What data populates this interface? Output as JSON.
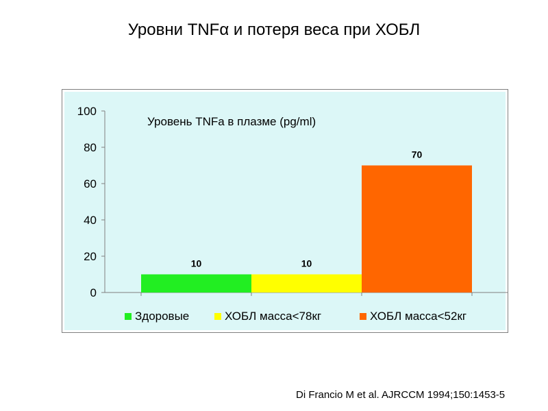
{
  "title": "Уровни TNFα  и потеря веса при ХОБЛ",
  "citation": "Di Francio M et al. AJRCCM 1994;150:1453-5",
  "colors": {
    "plot_background": "#dcf7f7",
    "bar_healthy": "#22ee22",
    "bar_mass78": "#ffff00",
    "bar_mass52": "#ff6600"
  },
  "chart_data": {
    "type": "bar",
    "title": "Уровень TNFa в плазме (pg/ml)",
    "categories": [
      "Здоровые",
      "ХОБЛ масса<78кг",
      "ХОБЛ масса<52кг"
    ],
    "values": [
      10,
      10,
      70
    ],
    "data_labels": [
      "10",
      "10",
      "70"
    ],
    "ylim": [
      0,
      100
    ],
    "yticks": [
      "0",
      "20",
      "40",
      "60",
      "80",
      "100"
    ],
    "legend_position": "bottom",
    "grid": false
  }
}
